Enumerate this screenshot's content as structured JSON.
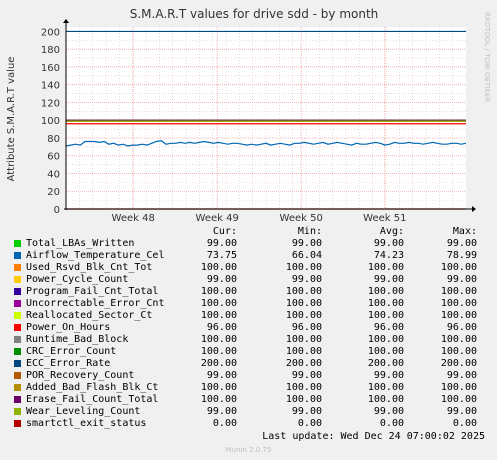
{
  "chart_data": {
    "type": "line",
    "title": "S.M.A.R.T values for drive sdd - by month",
    "ylabel": "Attribute S.M.A.R.T value",
    "xlabel": "",
    "side_label": "RRDTOOL / TOBI OETIKER",
    "ylim": [
      0,
      205
    ],
    "yticks": [
      0,
      20,
      40,
      60,
      80,
      100,
      120,
      140,
      160,
      180,
      200
    ],
    "ytick_labels": [
      "0",
      "20",
      "40",
      "60",
      "80",
      "100",
      "120",
      "140",
      "160",
      "180",
      "200"
    ],
    "xticks": [
      "Week 48",
      "Week 49",
      "Week 50",
      "Week 51"
    ],
    "grid": true,
    "columns": [
      "Cur:",
      "Min:",
      "Avg:",
      "Max:"
    ],
    "series": [
      {
        "name": "Total_LBAs_Written",
        "color": "#00cc00",
        "cur": "99.00",
        "min": "99.00",
        "avg": "99.00",
        "max": "99.00",
        "value": 99
      },
      {
        "name": "Airflow_Temperature_Cel",
        "color": "#0066b3",
        "cur": "73.75",
        "min": "66.04",
        "avg": "74.23",
        "max": "78.99",
        "value": 74
      },
      {
        "name": "Used_Rsvd_Blk_Cnt_Tot",
        "color": "#ff8000",
        "cur": "100.00",
        "min": "100.00",
        "avg": "100.00",
        "max": "100.00",
        "value": 100
      },
      {
        "name": "Power_Cycle_Count",
        "color": "#ffcc00",
        "cur": "99.00",
        "min": "99.00",
        "avg": "99.00",
        "max": "99.00",
        "value": 99
      },
      {
        "name": "Program_Fail_Cnt_Total",
        "color": "#330099",
        "cur": "100.00",
        "min": "100.00",
        "avg": "100.00",
        "max": "100.00",
        "value": 100
      },
      {
        "name": "Uncorrectable_Error_Cnt",
        "color": "#990099",
        "cur": "100.00",
        "min": "100.00",
        "avg": "100.00",
        "max": "100.00",
        "value": 100
      },
      {
        "name": "Reallocated_Sector_Ct",
        "color": "#ccff00",
        "cur": "100.00",
        "min": "100.00",
        "avg": "100.00",
        "max": "100.00",
        "value": 100
      },
      {
        "name": "Power_On_Hours",
        "color": "#ff0000",
        "cur": "96.00",
        "min": "96.00",
        "avg": "96.00",
        "max": "96.00",
        "value": 96
      },
      {
        "name": "Runtime_Bad_Block",
        "color": "#808080",
        "cur": "100.00",
        "min": "100.00",
        "avg": "100.00",
        "max": "100.00",
        "value": 100
      },
      {
        "name": "CRC_Error_Count",
        "color": "#008f00",
        "cur": "100.00",
        "min": "100.00",
        "avg": "100.00",
        "max": "100.00",
        "value": 100
      },
      {
        "name": "ECC_Error_Rate",
        "color": "#00487d",
        "cur": "200.00",
        "min": "200.00",
        "avg": "200.00",
        "max": "200.00",
        "value": 200
      },
      {
        "name": "POR_Recovery_Count",
        "color": "#b35a00",
        "cur": "99.00",
        "min": "99.00",
        "avg": "99.00",
        "max": "99.00",
        "value": 99
      },
      {
        "name": "Added_Bad_Flash_Blk_Ct",
        "color": "#b38f00",
        "cur": "100.00",
        "min": "100.00",
        "avg": "100.00",
        "max": "100.00",
        "value": 100
      },
      {
        "name": "Erase_Fail_Count_Total",
        "color": "#6b006b",
        "cur": "100.00",
        "min": "100.00",
        "avg": "100.00",
        "max": "100.00",
        "value": 100
      },
      {
        "name": "Wear_Leveling_Count",
        "color": "#8fb300",
        "cur": "99.00",
        "min": "99.00",
        "avg": "99.00",
        "max": "99.00",
        "value": 99
      },
      {
        "name": "smartctl_exit_status",
        "color": "#b30000",
        "cur": "0.00",
        "min": "0.00",
        "avg": "0.00",
        "max": "0.00",
        "value": 0
      }
    ],
    "temperature_trace": [
      71,
      72,
      73,
      72,
      76,
      76,
      76,
      75,
      76,
      73,
      74,
      72,
      73,
      71,
      72,
      72,
      73,
      72,
      74,
      76,
      77,
      73,
      74,
      74,
      75,
      74,
      75,
      74,
      75,
      76,
      75,
      74,
      75,
      74,
      73,
      74,
      74,
      73,
      72,
      73,
      72,
      73,
      74,
      72,
      73,
      74,
      73,
      72,
      74,
      74,
      75,
      74,
      73,
      74,
      75,
      73,
      74,
      75,
      74,
      73,
      72,
      74,
      73,
      73,
      74,
      75,
      74,
      72,
      73,
      75,
      74,
      74,
      75,
      74,
      74,
      73,
      74,
      75,
      74,
      73,
      73,
      74,
      74,
      73,
      74
    ]
  },
  "footer": {
    "last_update": "Last update: Wed Dec 24 07:00:02 2025",
    "munin": "Munin 2.0.75"
  }
}
